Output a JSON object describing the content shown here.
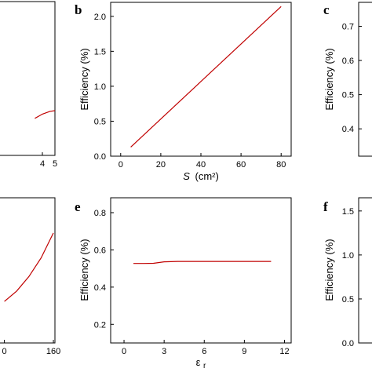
{
  "figure": {
    "panel_labels": [
      "b",
      "c",
      "e",
      "f"
    ]
  },
  "chart_data": [
    {
      "panel": "a",
      "type": "line",
      "xlabel": "",
      "ylabel": "",
      "xticks": [
        "4",
        "5"
      ],
      "yticks": [],
      "xlim": [
        0,
        5
      ],
      "ylim": [
        0,
        2.2
      ],
      "series": [
        {
          "color": "#c00000",
          "x": [
            3.4,
            3.7,
            4.0,
            4.3,
            4.6,
            5.0
          ],
          "y": [
            0.53,
            0.56,
            0.59,
            0.61,
            0.63,
            0.64
          ]
        }
      ]
    },
    {
      "panel": "b",
      "type": "line",
      "title": "",
      "xlabel_italic": "S",
      "xlabel_rest": "(cm²)",
      "ylabel": "Efficiency (%)",
      "xticks": [
        "0",
        "20",
        "40",
        "60",
        "80"
      ],
      "yticks": [
        "0.0",
        "0.5",
        "1.0",
        "1.5",
        "2.0"
      ],
      "xlim": [
        -5,
        85
      ],
      "ylim": [
        0,
        2.2
      ],
      "grid": false,
      "series": [
        {
          "color": "#c00000",
          "x": [
            5,
            80
          ],
          "y": [
            0.13,
            2.14
          ]
        }
      ]
    },
    {
      "panel": "c",
      "type": "line",
      "ylabel": "Efficiency (%)",
      "xticks": [],
      "yticks": [
        "0.4",
        "0.5",
        "0.6",
        "0.7"
      ],
      "ylim": [
        0.32,
        0.77
      ],
      "series": []
    },
    {
      "panel": "d",
      "type": "line",
      "xlabel": "",
      "ylabel": "",
      "xticks": [
        "0",
        "160"
      ],
      "yticks": [],
      "xlim": [
        -40,
        165
      ],
      "ylim": [
        0.3,
        1.0
      ],
      "series": [
        {
          "color": "#c00000",
          "x": [
            0,
            40,
            80,
            120,
            160
          ],
          "y": [
            0.5,
            0.55,
            0.62,
            0.71,
            0.83
          ]
        }
      ]
    },
    {
      "panel": "e",
      "type": "line",
      "xlabel": "ε",
      "xlabel_sub": "r",
      "ylabel": "Efficiency (%)",
      "xticks": [
        "0",
        "3",
        "6",
        "9",
        "12"
      ],
      "yticks": [
        "0.2",
        "0.4",
        "0.6",
        "0.8"
      ],
      "xlim": [
        -1,
        12.5
      ],
      "ylim": [
        0.1,
        0.88
      ],
      "grid": false,
      "series": [
        {
          "color": "#c00000",
          "x": [
            0.7,
            1.5,
            2.2,
            3.0,
            4.0,
            6.0,
            8.0,
            11.0
          ],
          "y": [
            0.527,
            0.527,
            0.528,
            0.536,
            0.538,
            0.538,
            0.538,
            0.538
          ]
        }
      ]
    },
    {
      "panel": "f",
      "type": "line",
      "ylabel": "Efficiency (%)",
      "xticks": [],
      "yticks": [
        "0.0",
        "0.5",
        "1.0",
        "1.5"
      ],
      "ylim": [
        0,
        1.65
      ],
      "series": []
    }
  ]
}
